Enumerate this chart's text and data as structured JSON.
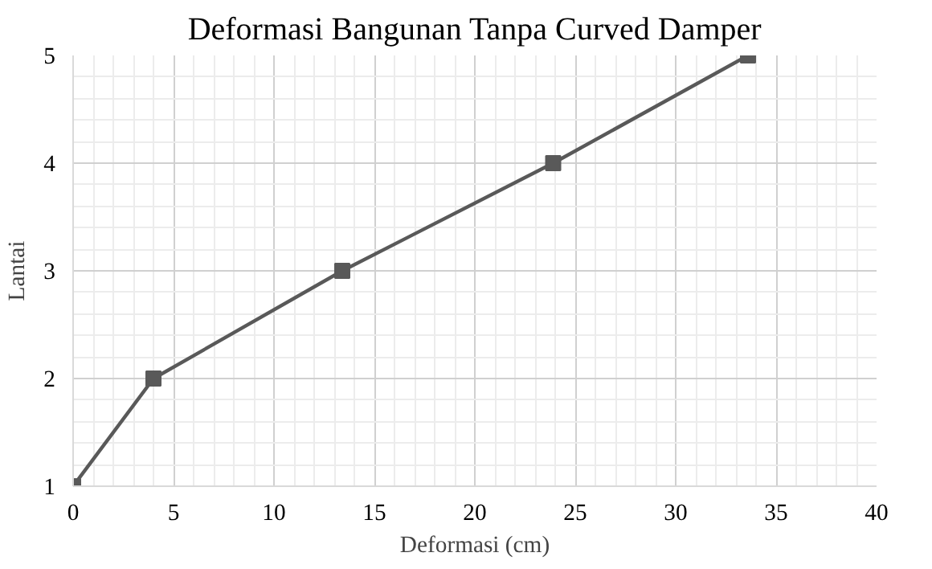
{
  "chart_data": {
    "type": "line",
    "title": "Deformasi Bangunan Tanpa Curved Damper",
    "xlabel": "Deformasi (cm)",
    "ylabel": "Lantai",
    "x": [
      0,
      4.0,
      13.4,
      23.9,
      33.6
    ],
    "series": [
      {
        "color": "#595959",
        "values": [
          1,
          2,
          3,
          4,
          5
        ]
      }
    ],
    "xlim": [
      0,
      40
    ],
    "xticks": [
      0,
      5,
      10,
      15,
      20,
      25,
      30,
      35,
      40
    ],
    "ylim": [
      1,
      5
    ],
    "yticks": [
      1,
      2,
      3,
      4,
      5
    ],
    "grid": true,
    "marker": "square",
    "line_style": "solid"
  }
}
